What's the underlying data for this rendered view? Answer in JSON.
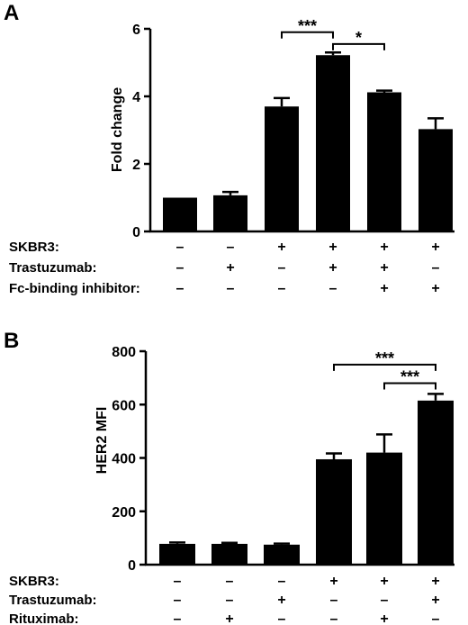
{
  "chart_data": [
    {
      "type": "bar",
      "panel": "A",
      "ylabel": "Fold change",
      "ylim": [
        0,
        6
      ],
      "yticks": [
        "0",
        "2",
        "4",
        "6"
      ],
      "values": [
        1.0,
        1.07,
        3.7,
        5.22,
        4.12,
        3.03
      ],
      "errors": [
        0.0,
        0.1,
        0.25,
        0.08,
        0.05,
        0.32
      ],
      "conditions": [
        {
          "label": "SKBR3:",
          "symbols": [
            "–",
            "–",
            "+",
            "+",
            "+",
            "+"
          ]
        },
        {
          "label": "Trastuzumab:",
          "symbols": [
            "–",
            "+",
            "–",
            "+",
            "+",
            "–"
          ]
        },
        {
          "label": "Fc-binding inhibitor:",
          "symbols": [
            "–",
            "–",
            "–",
            "–",
            "+",
            "+"
          ]
        }
      ],
      "significance": [
        {
          "from": 2,
          "to": 3,
          "label": "***",
          "y": 5.9
        },
        {
          "from": 3,
          "to": 4,
          "label": "*",
          "y": 5.55
        }
      ]
    },
    {
      "type": "bar",
      "panel": "B",
      "ylabel": "HER2 MFI",
      "ylim": [
        0,
        800
      ],
      "yticks": [
        "0",
        "200",
        "400",
        "600",
        "800"
      ],
      "values": [
        78,
        78,
        75,
        395,
        420,
        615
      ],
      "errors": [
        5,
        4,
        4,
        22,
        68,
        25
      ],
      "conditions": [
        {
          "label": "SKBR3:",
          "symbols": [
            "–",
            "–",
            "–",
            "+",
            "+",
            "+"
          ]
        },
        {
          "label": "Trastuzumab:",
          "symbols": [
            "–",
            "–",
            "+",
            "–",
            "–",
            "+"
          ]
        },
        {
          "label": "Rituximab:",
          "symbols": [
            "–",
            "+",
            "–",
            "–",
            "+",
            "–"
          ]
        }
      ],
      "significance": [
        {
          "from": 3,
          "to": 5,
          "label": "***",
          "y": 750
        },
        {
          "from": 4,
          "to": 5,
          "label": "***",
          "y": 680
        }
      ]
    }
  ],
  "colors": {
    "bar": "#000000",
    "axis": "#000000"
  }
}
